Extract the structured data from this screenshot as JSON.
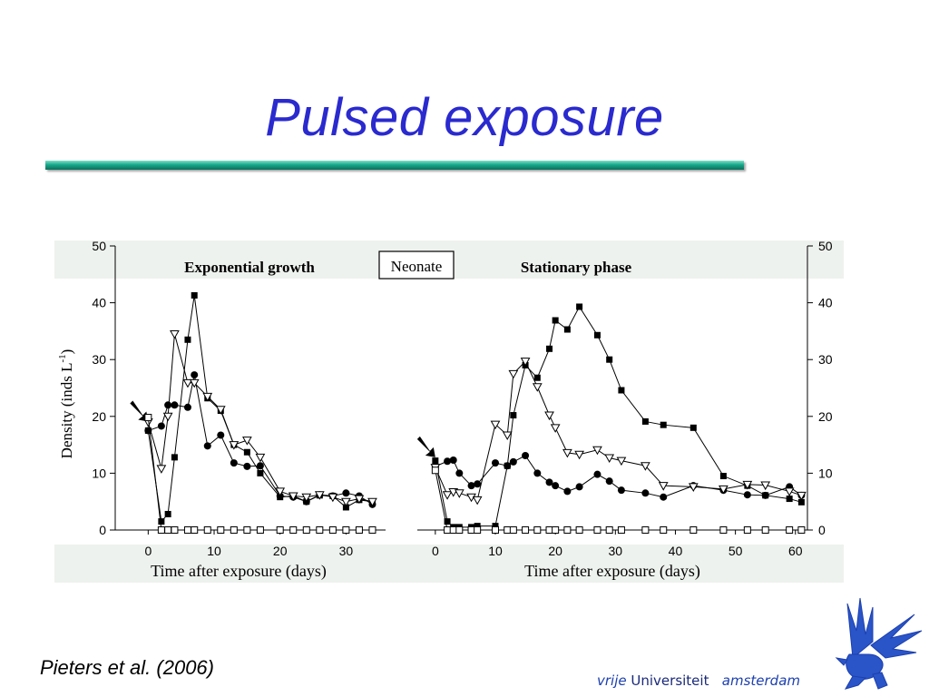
{
  "slide": {
    "title": "Pulsed exposure",
    "citation": "Pieters et al. (2006)"
  },
  "branding": {
    "name_part1": "vrije",
    "name_part2": "Universiteit",
    "name_part3": "amsterdam",
    "logo_icon": "griffin-icon",
    "color": "#1c3fae"
  },
  "colors": {
    "title": "#2a2acf",
    "rule": "#18a98a",
    "band": "#eef2ee"
  },
  "legend_box_label": "Neonate",
  "chart_data": [
    {
      "type": "line",
      "title": "Exponential growth",
      "xlabel": "Time after exposure (days)",
      "ylabel": "Density (inds L-1)",
      "xlim": [
        -5,
        36
      ],
      "ylim": [
        0,
        50
      ],
      "xticks": [
        0,
        10,
        20,
        30
      ],
      "yticks": [
        0,
        10,
        20,
        30,
        40,
        50
      ],
      "series": [
        {
          "marker": "filled-square",
          "x": [
            0,
            2,
            3,
            4,
            6,
            7,
            9,
            11,
            13,
            15,
            17,
            20,
            22,
            24,
            26,
            28,
            30,
            32,
            34
          ],
          "y": [
            17.5,
            1.5,
            2.8,
            12.8,
            33.5,
            41.3,
            23.2,
            21.0,
            15.0,
            13.7,
            10.0,
            5.8,
            6.0,
            5.0,
            6.1,
            6.0,
            4.0,
            5.3,
            5.0
          ]
        },
        {
          "marker": "filled-circle",
          "x": [
            0,
            2,
            3,
            4,
            6,
            7,
            9,
            11,
            13,
            15,
            17,
            20,
            22,
            24,
            26,
            28,
            30,
            32,
            34
          ],
          "y": [
            17.5,
            18.3,
            22.0,
            22.0,
            21.6,
            27.3,
            14.8,
            16.7,
            11.8,
            11.2,
            11.3,
            6.0,
            5.8,
            5.0,
            6.2,
            6.0,
            6.5,
            6.0,
            4.5
          ]
        },
        {
          "marker": "open-triangle-down",
          "x": [
            0,
            2,
            3,
            4,
            6,
            7,
            9,
            11,
            13,
            15,
            17,
            20,
            22,
            24,
            26,
            28,
            30,
            32,
            34
          ],
          "y": [
            19.0,
            10.8,
            20.0,
            34.5,
            25.9,
            25.9,
            23.5,
            21.2,
            15.0,
            15.8,
            12.8,
            6.8,
            6.0,
            5.8,
            6.2,
            5.8,
            5.0,
            5.5,
            5.0
          ]
        },
        {
          "marker": "open-square",
          "x": [
            0,
            2,
            3,
            4,
            6,
            7,
            9,
            11,
            13,
            15,
            17,
            20,
            22,
            24,
            26,
            28,
            30,
            32,
            34
          ],
          "y": [
            19.8,
            0,
            0,
            0,
            0,
            0,
            0,
            0,
            0,
            0,
            0,
            0,
            0,
            0,
            0,
            0,
            0,
            0,
            0
          ]
        }
      ]
    },
    {
      "type": "line",
      "title": "Stationary phase",
      "xlabel": "Time after exposure (days)",
      "ylabel": "",
      "xlim": [
        -3,
        62
      ],
      "ylim": [
        0,
        50
      ],
      "xticks": [
        0,
        10,
        20,
        30,
        40,
        50,
        60
      ],
      "yticks": [
        0,
        10,
        20,
        30,
        40,
        50
      ],
      "series": [
        {
          "marker": "filled-square",
          "x": [
            0,
            2,
            3,
            4,
            6,
            7,
            10,
            12,
            13,
            15,
            17,
            19,
            20,
            22,
            24,
            27,
            29,
            31,
            35,
            38,
            43,
            48,
            52,
            55,
            59,
            61
          ],
          "y": [
            12.2,
            1.5,
            0.5,
            0.5,
            0.5,
            0.7,
            0.7,
            11.3,
            20.2,
            29.0,
            26.8,
            31.9,
            36.9,
            35.3,
            39.3,
            34.3,
            30.0,
            24.6,
            19.1,
            18.5,
            18.0,
            9.5,
            7.8,
            6.1,
            5.5,
            4.9
          ]
        },
        {
          "marker": "filled-circle",
          "x": [
            0,
            2,
            3,
            4,
            6,
            7,
            10,
            12,
            13,
            15,
            17,
            19,
            20,
            22,
            24,
            27,
            29,
            31,
            35,
            38,
            43,
            48,
            52,
            55,
            59,
            61
          ],
          "y": [
            11.2,
            12.1,
            12.3,
            10.0,
            7.8,
            8.1,
            11.8,
            11.3,
            12.0,
            13.1,
            10.0,
            8.4,
            7.8,
            6.8,
            7.6,
            9.8,
            8.6,
            7.0,
            6.5,
            5.8,
            7.8,
            7.0,
            6.2,
            6.1,
            7.6,
            6.1
          ]
        },
        {
          "marker": "open-triangle-down",
          "x": [
            0,
            2,
            3,
            4,
            6,
            7,
            10,
            12,
            13,
            15,
            17,
            19,
            20,
            22,
            24,
            27,
            29,
            31,
            35,
            38,
            43,
            48,
            52,
            55,
            59,
            61
          ],
          "y": [
            11.0,
            6.2,
            6.7,
            6.5,
            5.8,
            5.3,
            18.6,
            16.7,
            27.5,
            29.7,
            25.2,
            20.2,
            18.0,
            13.6,
            13.3,
            14.1,
            12.7,
            12.2,
            11.3,
            7.8,
            7.6,
            7.2,
            8.0,
            7.9,
            6.8,
            6.1
          ]
        },
        {
          "marker": "open-square",
          "x": [
            0,
            2,
            3,
            4,
            6,
            7,
            10,
            12,
            13,
            15,
            17,
            19,
            20,
            22,
            24,
            27,
            29,
            31,
            35,
            38,
            43,
            48,
            52,
            55,
            59,
            61
          ],
          "y": [
            10.5,
            0,
            0,
            0,
            0,
            0,
            0,
            0,
            0,
            0,
            0,
            0,
            0,
            0,
            0,
            0,
            0,
            0,
            0,
            0,
            0,
            0,
            0,
            0,
            0,
            0
          ]
        }
      ]
    }
  ]
}
